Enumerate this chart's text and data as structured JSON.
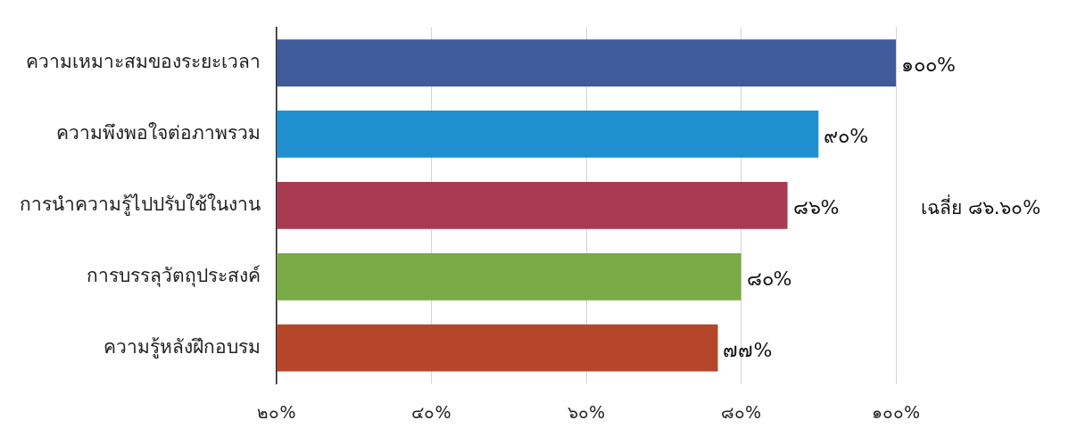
{
  "chart_data": {
    "type": "bar",
    "orientation": "horizontal",
    "categories": [
      "ความเหมาะสมของระยะเวลา",
      "ความพึงพอใจต่อภาพรวม",
      "การนำความรู้ไปปรับใช้ในงาน",
      "การบรรลุวัตถุประสงค์",
      "ความรู้หลังฝึกอบรม"
    ],
    "values": [
      100,
      90,
      86,
      80,
      77
    ],
    "colors": [
      "#3f5b9b",
      "#1f8fd0",
      "#a83a52",
      "#79aa45",
      "#b5462a"
    ],
    "value_labels": [
      "๑๐๐%",
      "๙๐%",
      "๘๖%",
      "๘๐%",
      "๗๗%"
    ],
    "xlim": [
      20,
      100
    ],
    "xticks": [
      {
        "value": 20,
        "label": "๒๐%"
      },
      {
        "value": 40,
        "label": "๔๐%"
      },
      {
        "value": 60,
        "label": "๖๐%"
      },
      {
        "value": 80,
        "label": "๘๐%"
      },
      {
        "value": 100,
        "label": "๑๐๐%"
      }
    ],
    "grid": "x",
    "annotations": [
      "เฉลี่ย ๘๖.๖๐%"
    ]
  }
}
